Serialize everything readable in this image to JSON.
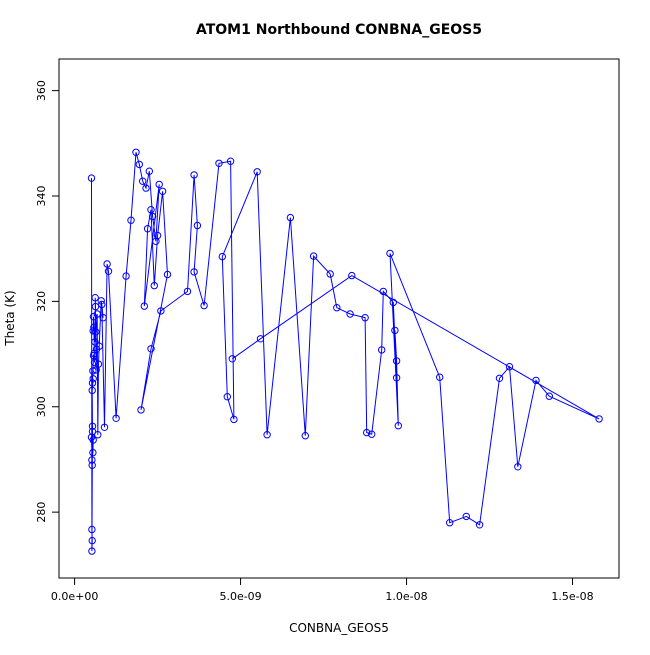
{
  "chart_data": {
    "type": "line",
    "title": "ATOM1 Northbound CONBNA_GEOS5",
    "xlabel": "CONBNA_GEOS5",
    "ylabel": "Theta (K)",
    "xlim": [
      -4.7e-10,
      1.64e-08
    ],
    "ylim": [
      267.5,
      366.0
    ],
    "x_ticks": [
      0,
      5e-09,
      1e-08,
      1.5e-08
    ],
    "x_tick_labels": [
      "0.0e+00",
      "5.0e-09",
      "1.0e-08",
      "1.5e-08"
    ],
    "y_ticks": [
      280,
      300,
      320,
      340,
      360
    ],
    "y_tick_labels": [
      "280",
      "300",
      "320",
      "340",
      "360"
    ],
    "grid": false,
    "legend": "none",
    "series_color": "#0000ff",
    "markers": "open-circle",
    "series": [
      {
        "x": [
          5.1e-10,
          5.2e-10,
          5.3e-10,
          5.2e-10,
          5.4e-10,
          5.1e-10,
          5.3e-10,
          5.2e-10,
          5.5e-10,
          5.6e-10,
          5.4e-10,
          5.3e-10,
          5.6e-10,
          5.4e-10,
          5.5e-10,
          5.7e-10,
          5.9e-10,
          6e-10,
          5.8e-10,
          5.6e-10,
          5.7e-10,
          6.1e-10,
          6.3e-10,
          6.2e-10,
          6.5e-10,
          6.6e-10,
          6.4e-10,
          6.8e-10,
          7e-10,
          7.2e-10,
          7.4e-10,
          8e-10,
          8.6e-10,
          8.2e-10,
          9e-10,
          9.8e-10,
          1.02e-09,
          1.25e-09,
          1.55e-09,
          1.7e-09,
          1.85e-09,
          1.95e-09,
          2.05e-09,
          2.15e-09,
          2.25e-09,
          2.35e-09,
          2.45e-09,
          2.55e-09,
          2.1e-09,
          2.2e-09,
          2.3e-09,
          2.4e-09,
          2.5e-09,
          2.65e-09,
          2.8e-09,
          2e-09,
          2.3e-09,
          2.6e-09,
          3.4e-09,
          3.6e-09,
          3.7e-09,
          3.6e-09,
          3.9e-09,
          4.35e-09,
          4.7e-09,
          4.8e-09,
          4.6e-09,
          4.45e-09,
          5.5e-09,
          5.8e-09,
          6.5e-09,
          6.95e-09,
          7.2e-09,
          7.7e-09,
          7.9e-09,
          8.3e-09,
          8.75e-09,
          8.8e-09,
          8.95e-09,
          9.25e-09,
          9.3e-09,
          9.6e-09,
          9.7e-09,
          9.65e-09,
          9.7e-09,
          9.75e-09,
          9.5e-09,
          1.1e-08,
          1.13e-08,
          1.18e-08,
          1.22e-08,
          1.28e-08,
          1.31e-08,
          1.335e-08,
          1.39e-08,
          1.43e-08,
          1.58e-08,
          8.35e-09,
          5.6e-09,
          4.75e-09
        ],
        "y": [
          343.4,
          276.7,
          274.6,
          272.6,
          296.3,
          294.2,
          288.9,
          289.9,
          291.3,
          293.7,
          295.3,
          303.1,
          305.3,
          304.5,
          306.8,
          309.7,
          310.1,
          308.4,
          315.1,
          314.4,
          317.1,
          312.3,
          319.0,
          320.7,
          307.0,
          310.9,
          314.2,
          317.6,
          294.7,
          308.1,
          311.5,
          320.1,
          316.9,
          319.4,
          296.1,
          327.1,
          325.7,
          297.8,
          324.8,
          335.4,
          348.3,
          346.0,
          342.8,
          341.5,
          344.7,
          336.1,
          331.4,
          342.2,
          319.1,
          333.8,
          337.4,
          323.0,
          332.5,
          340.9,
          325.1,
          299.4,
          311.0,
          318.2,
          321.9,
          344.0,
          334.4,
          325.6,
          319.2,
          346.2,
          346.6,
          297.6,
          301.9,
          328.5,
          344.6,
          294.7,
          335.9,
          294.5,
          328.6,
          325.2,
          318.8,
          317.6,
          316.9,
          295.1,
          294.8,
          310.8,
          321.9,
          319.8,
          305.5,
          314.5,
          308.7,
          296.4,
          329.1,
          305.6,
          278.0,
          279.2,
          277.6,
          305.4,
          307.6,
          288.6,
          305.0,
          302.0,
          297.7,
          324.9,
          312.9,
          309.1
        ]
      }
    ]
  }
}
